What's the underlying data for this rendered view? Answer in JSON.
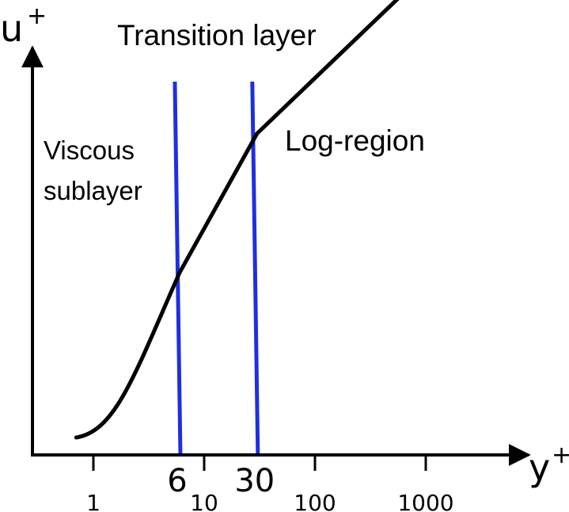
{
  "chart_data": {
    "type": "line",
    "title": "",
    "xlabel": "y+",
    "ylabel": "u+",
    "xscale": "log",
    "x_tick_labels": [
      "1",
      "10",
      "100",
      "1000"
    ],
    "boundary_tick_labels": [
      "6",
      "30"
    ],
    "region_labels": {
      "viscous_line1": "Viscous",
      "viscous_line2": "sublayer",
      "transition": "Transition layer",
      "log": "Log-region"
    },
    "boundaries": [
      6,
      30
    ],
    "series": [
      {
        "x": [
          0.7,
          1.5,
          3,
          6,
          30,
          1500
        ],
        "y": [
          1.0,
          1.55,
          2.6,
          4.2,
          6.9,
          10.4
        ]
      }
    ],
    "grid": false,
    "colors": {
      "curve": "#000000",
      "boundary_lines": "#1f2fe0",
      "axes": "#000000"
    }
  }
}
